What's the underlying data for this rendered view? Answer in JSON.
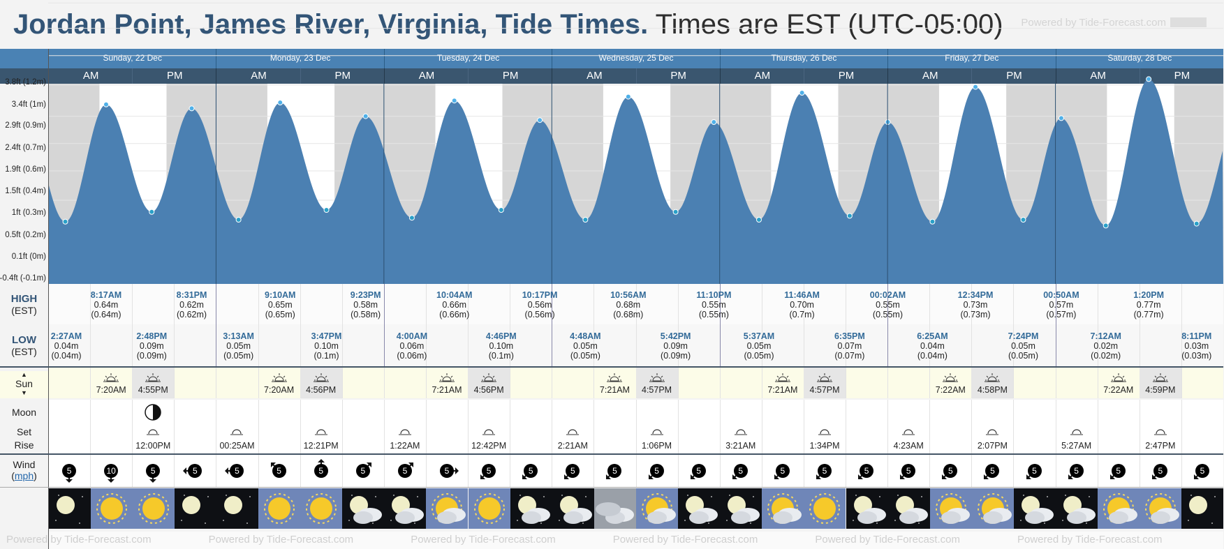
{
  "title": {
    "location": "Jordan Point, James River, Virginia, Tide Times.",
    "timezone": "Times are EST (UTC-05:00)"
  },
  "powered_by": "Powered by Tide-Forecast.com",
  "days": [
    "Sunday, 22 Dec",
    "Monday, 23 Dec",
    "Tuesday, 24 Dec",
    "Wednesday, 25 Dec",
    "Thursday, 26 Dec",
    "Friday, 27 Dec",
    "Saturday, 28 Dec"
  ],
  "ampm": [
    "AM",
    "PM"
  ],
  "y_axis_labels": [
    "3.8ft (1.2m)",
    "3.4ft (1m)",
    "2.9ft (0.9m)",
    "2.4ft (0.7m)",
    "1.9ft (0.6m)",
    "1.5ft (0.4m)",
    "1ft (0.3m)",
    "0.5ft (0.2m)",
    "0.1ft (0m)",
    "-0.4ft (-0.1m)"
  ],
  "row_labels": {
    "high": "HIGH",
    "high_tz": "(EST)",
    "low": "LOW",
    "low_tz": "(EST)",
    "sun": "Sun",
    "moon": "Moon",
    "moon_set": "Set",
    "moon_rise": "Rise",
    "wind": "Wind",
    "wind_unit": "mph"
  },
  "colors": {
    "water": "#4b80b2",
    "night": "#d6d6d6",
    "header": "#4a82b4",
    "ampm": "#3a566f",
    "accent": "#336b99"
  },
  "highs": [
    {
      "time": "8:17AM",
      "ft": "0.64m",
      "m": "(0.64m)"
    },
    {
      "time": "8:31PM",
      "ft": "0.62m",
      "m": "(0.62m)"
    },
    {
      "time": "9:10AM",
      "ft": "0.65m",
      "m": "(0.65m)"
    },
    {
      "time": "9:23PM",
      "ft": "0.58m",
      "m": "(0.58m)"
    },
    {
      "time": "10:04AM",
      "ft": "0.66m",
      "m": "(0.66m)"
    },
    {
      "time": "10:17PM",
      "ft": "0.56m",
      "m": "(0.56m)"
    },
    {
      "time": "10:56AM",
      "ft": "0.68m",
      "m": "(0.68m)"
    },
    {
      "time": "11:10PM",
      "ft": "0.55m",
      "m": "(0.55m)"
    },
    {
      "time": "11:46AM",
      "ft": "0.70m",
      "m": "(0.7m)"
    },
    {
      "time": "00:02AM",
      "ft": "0.55m",
      "m": "(0.55m)"
    },
    {
      "time": "12:34PM",
      "ft": "0.73m",
      "m": "(0.73m)"
    },
    {
      "time": "00:50AM",
      "ft": "0.57m",
      "m": "(0.57m)"
    },
    {
      "time": "1:20PM",
      "ft": "0.77m",
      "m": "(0.77m)"
    }
  ],
  "lows": [
    {
      "time": "2:27AM",
      "ft": "0.04m",
      "m": "(0.04m)"
    },
    {
      "time": "2:48PM",
      "ft": "0.09m",
      "m": "(0.09m)"
    },
    {
      "time": "3:13AM",
      "ft": "0.05m",
      "m": "(0.05m)"
    },
    {
      "time": "3:47PM",
      "ft": "0.10m",
      "m": "(0.1m)"
    },
    {
      "time": "4:00AM",
      "ft": "0.06m",
      "m": "(0.06m)"
    },
    {
      "time": "4:46PM",
      "ft": "0.10m",
      "m": "(0.1m)"
    },
    {
      "time": "4:48AM",
      "ft": "0.05m",
      "m": "(0.05m)"
    },
    {
      "time": "5:42PM",
      "ft": "0.09m",
      "m": "(0.09m)"
    },
    {
      "time": "5:37AM",
      "ft": "0.05m",
      "m": "(0.05m)"
    },
    {
      "time": "6:35PM",
      "ft": "0.07m",
      "m": "(0.07m)"
    },
    {
      "time": "6:25AM",
      "ft": "0.04m",
      "m": "(0.04m)"
    },
    {
      "time": "7:24PM",
      "ft": "0.05m",
      "m": "(0.05m)"
    },
    {
      "time": "7:12AM",
      "ft": "0.02m",
      "m": "(0.02m)"
    },
    {
      "time": "8:11PM",
      "ft": "0.03m",
      "m": "(0.03m)"
    }
  ],
  "sun": [
    {
      "rise": "7:20AM",
      "set": "4:55PM"
    },
    {
      "rise": "7:20AM",
      "set": "4:56PM"
    },
    {
      "rise": "7:21AM",
      "set": "4:56PM"
    },
    {
      "rise": "7:21AM",
      "set": "4:57PM"
    },
    {
      "rise": "7:21AM",
      "set": "4:57PM"
    },
    {
      "rise": "7:22AM",
      "set": "4:58PM"
    },
    {
      "rise": "7:22AM",
      "set": "4:59PM"
    }
  ],
  "moon": [
    {
      "time": "12:00PM",
      "kind": "rise"
    },
    {
      "time": "00:25AM",
      "kind": "set"
    },
    {
      "time": "12:21PM",
      "kind": "rise"
    },
    {
      "time": "1:22AM",
      "kind": "set"
    },
    {
      "time": "12:42PM",
      "kind": "rise"
    },
    {
      "time": "2:21AM",
      "kind": "set"
    },
    {
      "time": "1:06PM",
      "kind": "rise"
    },
    {
      "time": "3:21AM",
      "kind": "set"
    },
    {
      "time": "1:34PM",
      "kind": "rise"
    },
    {
      "time": "4:23AM",
      "kind": "set"
    },
    {
      "time": "2:07PM",
      "kind": "rise"
    },
    {
      "time": "5:27AM",
      "kind": "set"
    },
    {
      "time": "2:47PM",
      "kind": "rise"
    }
  ],
  "moon_phase_icon": "half-moon-icon",
  "wind": [
    {
      "speed": "5",
      "dir": "down"
    },
    {
      "speed": "10",
      "dir": "down"
    },
    {
      "speed": "5",
      "dir": "down"
    },
    {
      "speed": "5",
      "dir": "left"
    },
    {
      "speed": "5",
      "dir": "left"
    },
    {
      "speed": "5",
      "dir": "up-left"
    },
    {
      "speed": "5",
      "dir": "up"
    },
    {
      "speed": "5",
      "dir": "up-right"
    },
    {
      "speed": "5",
      "dir": "up-right"
    },
    {
      "speed": "5",
      "dir": "right"
    },
    {
      "speed": "5",
      "dir": "down-left"
    },
    {
      "speed": "5",
      "dir": "down-left"
    },
    {
      "speed": "5",
      "dir": "down-left"
    },
    {
      "speed": "5",
      "dir": "down-left"
    },
    {
      "speed": "5",
      "dir": "down-left"
    },
    {
      "speed": "5",
      "dir": "down-left"
    },
    {
      "speed": "5",
      "dir": "down-left"
    },
    {
      "speed": "5",
      "dir": "down-left"
    },
    {
      "speed": "5",
      "dir": "down-left"
    },
    {
      "speed": "5",
      "dir": "down-left"
    },
    {
      "speed": "5",
      "dir": "down-left"
    },
    {
      "speed": "5",
      "dir": "down-left"
    },
    {
      "speed": "5",
      "dir": "down-left"
    },
    {
      "speed": "5",
      "dir": "down-left"
    },
    {
      "speed": "5",
      "dir": "down-left"
    },
    {
      "speed": "5",
      "dir": "down-left"
    },
    {
      "speed": "5",
      "dir": "down-left"
    },
    {
      "speed": "5",
      "dir": "down-left"
    }
  ],
  "weather": [
    "clear-night-icon",
    "sunny-icon",
    "sunny-icon",
    "clear-night-icon",
    "clear-night-icon",
    "sunny-icon",
    "sunny-icon",
    "partly-cloudy-night-icon",
    "partly-cloudy-night-icon",
    "partly-cloudy-day-icon",
    "sunny-icon",
    "partly-cloudy-night-icon",
    "partly-cloudy-night-icon",
    "cloudy-icon",
    "partly-cloudy-day-icon",
    "partly-cloudy-night-icon",
    "partly-cloudy-night-icon",
    "partly-cloudy-day-icon",
    "sunny-icon",
    "partly-cloudy-night-icon",
    "partly-cloudy-night-icon",
    "partly-cloudy-day-icon",
    "partly-cloudy-day-icon",
    "partly-cloudy-night-icon",
    "partly-cloudy-night-icon",
    "partly-cloudy-day-icon",
    "partly-cloudy-day-icon",
    "clear-night-icon"
  ]
}
